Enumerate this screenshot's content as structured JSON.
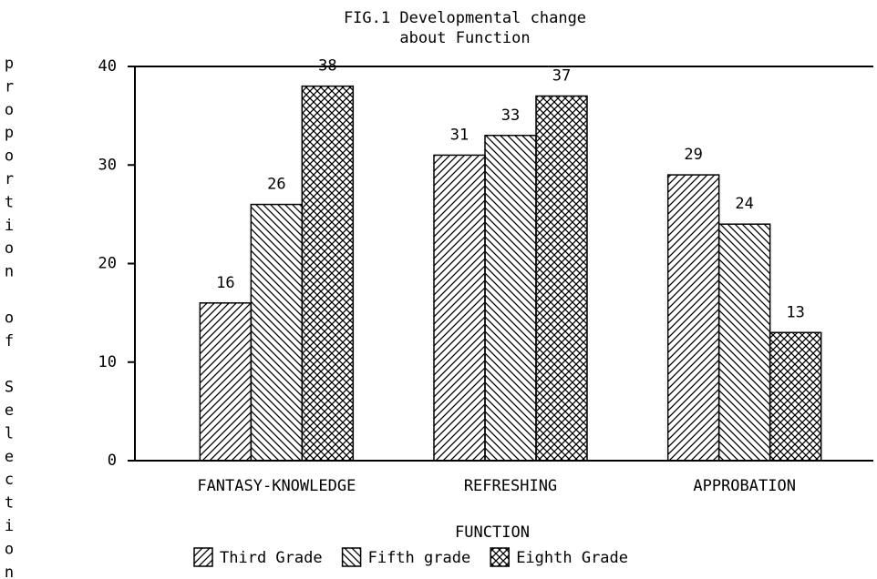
{
  "chart_data": {
    "type": "bar",
    "title": [
      "FIG.1 Developmental change",
      "about Function"
    ],
    "x_label": "FUNCTION",
    "y_label": "proportion of Selection",
    "categories": [
      "FANTASY-KNOWLEDGE",
      "REFRESHING",
      "APPROBATION"
    ],
    "series": [
      {
        "name": "Third Grade",
        "color": "#000000",
        "pattern": "forward-hatch",
        "values": [
          16,
          31,
          29
        ]
      },
      {
        "name": "Fifth grade",
        "color": "#000000",
        "pattern": "back-hatch",
        "values": [
          26,
          33,
          24
        ]
      },
      {
        "name": "Eighth Grade",
        "color": "#000000",
        "pattern": "cross-hatch",
        "values": [
          38,
          37,
          13
        ]
      }
    ],
    "ylim": [
      0,
      40
    ],
    "yticks": [
      0,
      10,
      20,
      30,
      40
    ],
    "legend": "bottom"
  }
}
